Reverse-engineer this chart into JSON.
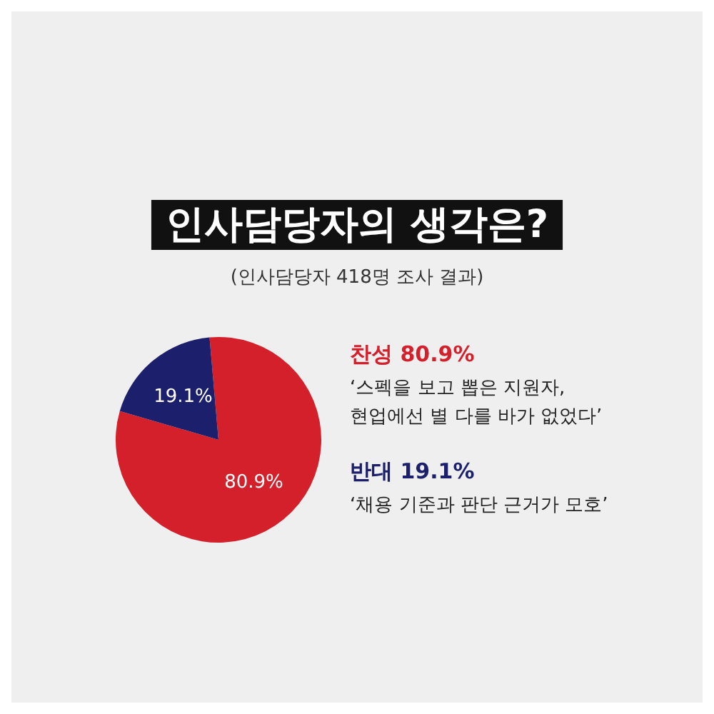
{
  "chart_data": {
    "type": "pie",
    "title": "인사담당자의 생각은?",
    "subtitle": "(인사담당자 418명 조사 결과)",
    "categories": [
      null,
      null
    ],
    "values": [
      80.9,
      19.1
    ],
    "value_labels": [
      "80.9%",
      "19.1%"
    ],
    "colors": [
      "#d4202a",
      "#1c1f6b"
    ],
    "annotations": [
      "찬성 80.9%",
      "‘스펙을 보고 뽑은 지원자,\n현업에선 별 다를 바가 없었다’",
      "반대 19.1%",
      "‘채용 기준과 판단 근거가 모호’"
    ]
  }
}
